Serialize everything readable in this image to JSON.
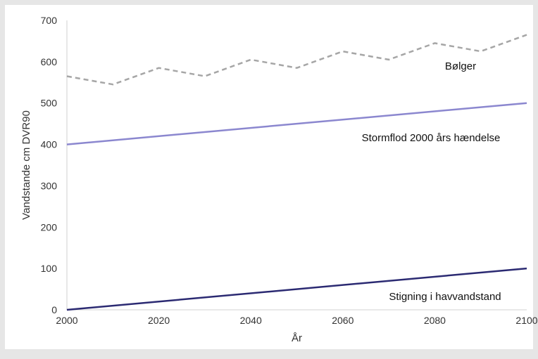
{
  "chart_data": {
    "type": "line",
    "xlabel": "År",
    "ylabel": "Vandstande cm DVR90",
    "xlim": [
      2000,
      2100
    ],
    "ylim": [
      0,
      700
    ],
    "xticks": [
      2000,
      2020,
      2040,
      2060,
      2080,
      2100
    ],
    "yticks": [
      0,
      100,
      200,
      300,
      400,
      500,
      600,
      700
    ],
    "grid": false,
    "legend": "none",
    "series": [
      {
        "name": "Bølger",
        "style": "dashed",
        "color": "#a6a6a6",
        "x": [
          2000,
          2010,
          2020,
          2030,
          2040,
          2050,
          2060,
          2070,
          2080,
          2090,
          2100
        ],
        "values": [
          565,
          545,
          585,
          565,
          605,
          585,
          625,
          605,
          645,
          625,
          665
        ]
      },
      {
        "name": "Stormflod 2000 års hændelse",
        "style": "solid",
        "color": "#8b87cf",
        "x": [
          2000,
          2100
        ],
        "values": [
          400,
          500
        ]
      },
      {
        "name": "Stigning i havvandstand",
        "style": "solid",
        "color": "#2b2a72",
        "x": [
          2000,
          2100
        ],
        "values": [
          0,
          100
        ]
      }
    ]
  }
}
